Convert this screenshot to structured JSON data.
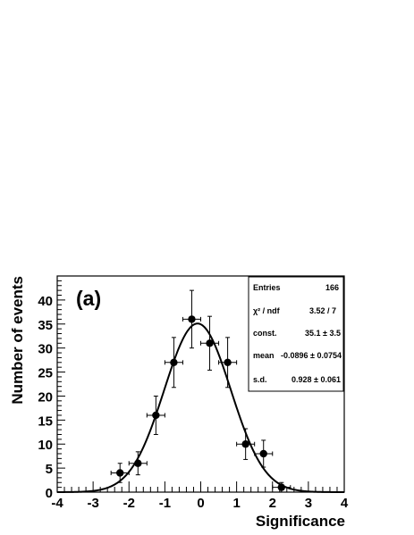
{
  "chart_data": {
    "type": "scatter",
    "panel_label": "(a)",
    "xlabel": "Significance",
    "ylabel": "Number of events",
    "xlim": [
      -4,
      4
    ],
    "ylim": [
      0,
      45
    ],
    "x_ticks": [
      -4,
      -3,
      -2,
      -1,
      0,
      1,
      2,
      3,
      4
    ],
    "x_tick_labels": [
      "-4",
      "-3",
      "-2",
      "-1",
      "0",
      "1",
      "2",
      "3",
      "4"
    ],
    "y_ticks": [
      0,
      5,
      10,
      15,
      20,
      25,
      30,
      35,
      40
    ],
    "y_tick_labels": [
      "0",
      "5",
      "10",
      "15",
      "20",
      "25",
      "30",
      "35",
      "40"
    ],
    "points": [
      {
        "x": -2.25,
        "y": 4,
        "yerr": 2.0
      },
      {
        "x": -1.75,
        "y": 6,
        "yerr": 2.4
      },
      {
        "x": -1.25,
        "y": 16,
        "yerr": 4.0
      },
      {
        "x": -0.75,
        "y": 27,
        "yerr": 5.2
      },
      {
        "x": -0.25,
        "y": 36,
        "yerr": 6.0
      },
      {
        "x": 0.25,
        "y": 31,
        "yerr": 5.6
      },
      {
        "x": 0.75,
        "y": 27,
        "yerr": 5.2
      },
      {
        "x": 1.25,
        "y": 10,
        "yerr": 3.2
      },
      {
        "x": 1.75,
        "y": 8,
        "yerr": 2.8
      },
      {
        "x": 2.25,
        "y": 1,
        "yerr": 1.0
      }
    ],
    "x_error_halfwidth": 0.25,
    "fit": {
      "function": "gaussian",
      "constant": 35.1,
      "mean": -0.0896,
      "sigma": 0.928
    },
    "stats_box": {
      "location": "top-right",
      "rows": [
        {
          "label": "Entries",
          "value": "166"
        },
        {
          "label": "χ² / ndf",
          "value": "3.52 / 7"
        },
        {
          "label": "const.",
          "value": "35.1 ± 3.5"
        },
        {
          "label": "mean",
          "value": "-0.0896 ± 0.0754"
        },
        {
          "label": "s.d.",
          "value": "0.928 ± 0.061"
        }
      ]
    },
    "grid": false,
    "colors": {
      "markers": "#000000",
      "fit_line": "#000000",
      "frame": "#000000"
    }
  }
}
